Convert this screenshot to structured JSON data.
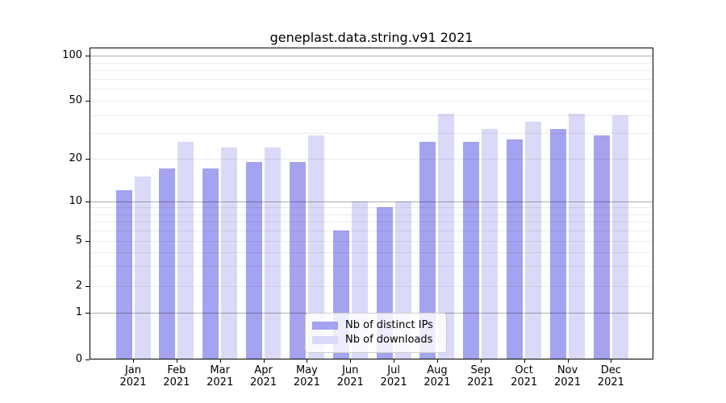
{
  "chart_data": {
    "type": "bar",
    "title": "geneplast.data.string.v91 2021",
    "categories": [
      "Jan",
      "Feb",
      "Mar",
      "Apr",
      "May",
      "Jun",
      "Jul",
      "Aug",
      "Sep",
      "Oct",
      "Nov",
      "Dec"
    ],
    "year_label": "2021",
    "series": [
      {
        "name": "Nb of distinct IPs",
        "color": "#a3a3f0",
        "values": [
          12,
          17,
          17,
          19,
          19,
          6,
          9,
          26,
          26,
          27,
          32,
          29
        ]
      },
      {
        "name": "Nb of downloads",
        "color": "#dadaf8",
        "values": [
          15,
          26,
          24,
          24,
          29,
          10,
          10,
          41,
          32,
          36,
          41,
          40
        ]
      }
    ],
    "yscale": "symlog",
    "ylim": [
      0,
      114
    ],
    "yticks_labeled": [
      0,
      1,
      2,
      5,
      10,
      20,
      50,
      100
    ],
    "grid_major": [
      1,
      10,
      100
    ],
    "grid_minor": [
      2,
      3,
      4,
      5,
      6,
      7,
      8,
      9,
      20,
      30,
      40,
      50,
      60,
      70,
      80,
      90
    ],
    "grid": "horizontal",
    "legend_position": "lower center",
    "colors": {
      "bar_distinct_ips": "#a3a3f0",
      "bar_downloads": "#dadaf8",
      "grid_major": "rgba(0,0,0,0.32)",
      "grid_minor": "rgba(0,0,0,0.07)",
      "axis": "#000000",
      "background": "#ffffff"
    }
  }
}
